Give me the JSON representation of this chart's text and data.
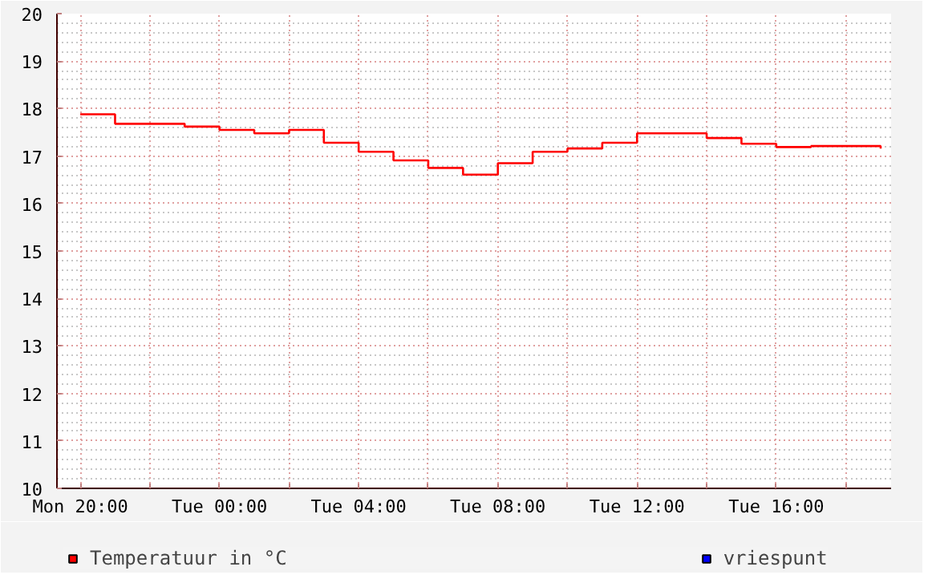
{
  "chart_data": {
    "type": "step",
    "categories": [
      "Mon 20:00",
      null,
      null,
      null,
      "Tue 00:00",
      null,
      null,
      null,
      "Tue 04:00",
      null,
      null,
      null,
      "Tue 08:00",
      null,
      null,
      null,
      "Tue 12:00",
      null,
      null,
      null,
      "Tue 16:00",
      null,
      null,
      null
    ],
    "series": [
      {
        "name": "Temperatuur in °C",
        "color": "#ff0000",
        "values": [
          17.88,
          17.68,
          17.68,
          17.62,
          17.55,
          17.48,
          17.55,
          17.28,
          17.09,
          16.91,
          16.75,
          16.61,
          16.85,
          17.09,
          17.16,
          17.28,
          17.48,
          17.48,
          17.38,
          17.26,
          17.19,
          17.21,
          17.21,
          17.16
        ]
      },
      {
        "name": "vriespunt",
        "color": "#0000ff",
        "values": [
          null,
          null,
          null,
          null,
          null,
          null,
          null,
          null,
          null,
          null,
          null,
          null,
          null,
          null,
          null,
          null,
          null,
          null,
          null,
          null,
          null,
          null,
          null,
          null
        ]
      }
    ],
    "ylim": [
      10,
      20
    ],
    "yticks": [
      10,
      11,
      12,
      13,
      14,
      15,
      16,
      17,
      18,
      19,
      20
    ],
    "grid": true,
    "legend": "bottom"
  }
}
